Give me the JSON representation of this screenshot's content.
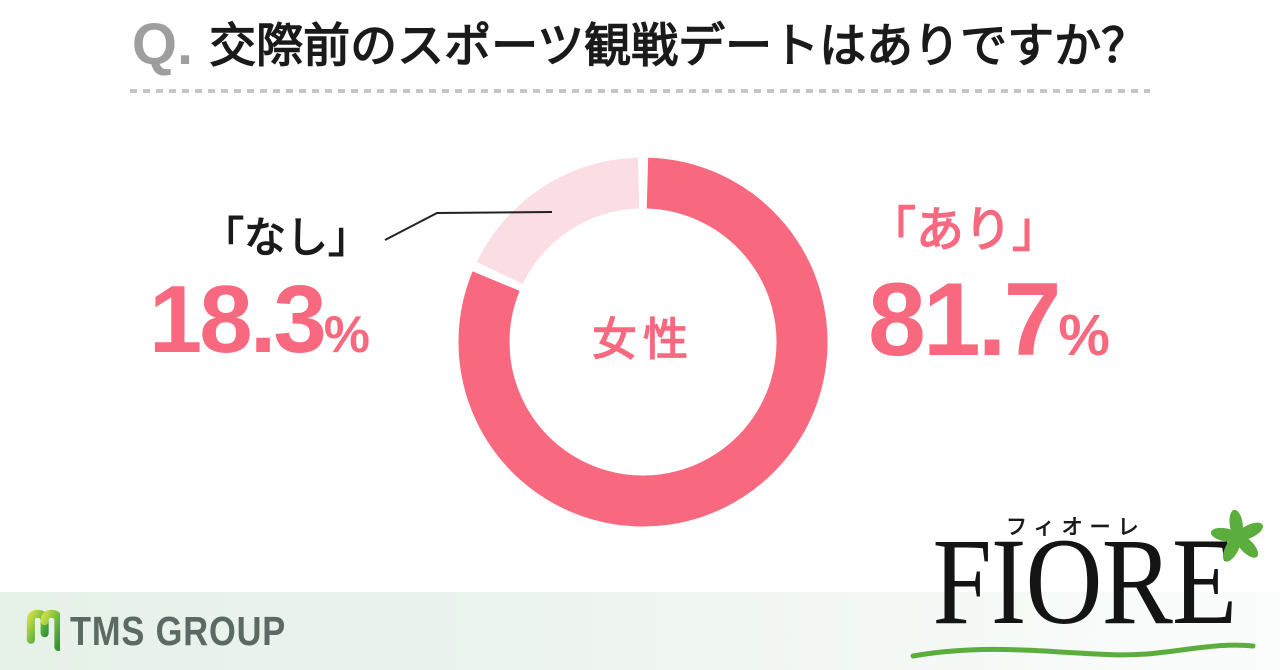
{
  "header": {
    "q_prefix": "Q.",
    "title": "交際前のスポーツ観戦デートはありですか？"
  },
  "chart_data": {
    "type": "pie",
    "donut": true,
    "title": "交際前のスポーツ観戦デートはありですか？",
    "center_label": "女性",
    "categories": [
      "あり",
      "なし"
    ],
    "values": [
      81.7,
      18.3
    ],
    "unit": "%",
    "colors": [
      "#f8697f",
      "#fbdee3"
    ],
    "start_angle_deg": 0,
    "direction": "clockwise",
    "legend_position": "none"
  },
  "labels": {
    "yes": {
      "name": "「あり」",
      "value": "81.7",
      "unit": "%"
    },
    "no": {
      "name": "「なし」",
      "value": "18.3",
      "unit": "%"
    }
  },
  "footer": {
    "tms": {
      "text": "TMS GROUP"
    },
    "fiore": {
      "kana": "フィオーレ",
      "name": "FIORE"
    }
  },
  "colors": {
    "accent_pink": "#f8697f",
    "light_pink": "#fbdee3",
    "logo_green": "#5bad3e",
    "tms_text_gray": "#5b6a62",
    "q_prefix_gray": "#9e9e9e",
    "divider_gray": "#c6c6c6",
    "band_mint": "#e6f1e8"
  }
}
